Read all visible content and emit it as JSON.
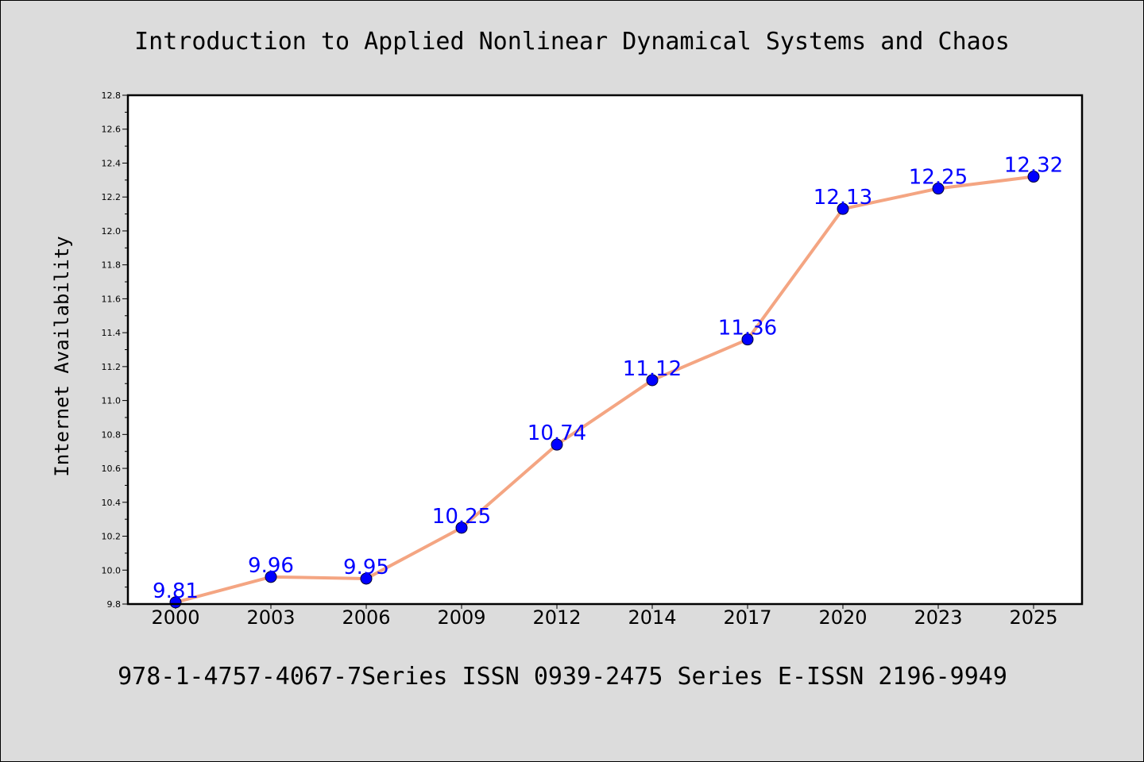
{
  "header": {
    "title": "Introduction to Applied Nonlinear Dynamical Systems and Chaos"
  },
  "footer": {
    "text": "978-1-4757-4067-7Series ISSN 0939-2475 Series E-ISSN 2196-9949"
  },
  "chart_data": {
    "type": "line",
    "title": "Introduction to Applied Nonlinear Dynamical Systems and Chaos",
    "xlabel": "",
    "ylabel": "Internet Availability",
    "categories": [
      "2000",
      "2003",
      "2006",
      "2009",
      "2012",
      "2014",
      "2017",
      "2020",
      "2023",
      "2025"
    ],
    "series": [
      {
        "values": [
          9.81,
          9.96,
          9.95,
          10.25,
          10.74,
          11.12,
          11.36,
          12.13,
          12.25,
          12.32
        ],
        "data_labels": [
          "9.81",
          "9.96",
          "9.95",
          "10.25",
          "10.74",
          "11.12",
          "11.36",
          "12.13",
          "12.25",
          "12.32"
        ],
        "line_color": "#f4a582",
        "marker_color": "#0000ff",
        "label_color": "#0000ff"
      }
    ],
    "ylim": [
      9.8,
      12.8
    ],
    "yticks": [
      "9.8",
      "10.0",
      "10.2",
      "10.4",
      "10.6",
      "10.8",
      "11.0",
      "11.2",
      "11.4",
      "11.6",
      "11.8",
      "12.0",
      "12.2",
      "12.4",
      "12.6",
      "12.8"
    ],
    "grid": false,
    "legend": "none",
    "colors": {
      "background": "#dcdcdc",
      "plot_background": "#ffffff"
    }
  }
}
